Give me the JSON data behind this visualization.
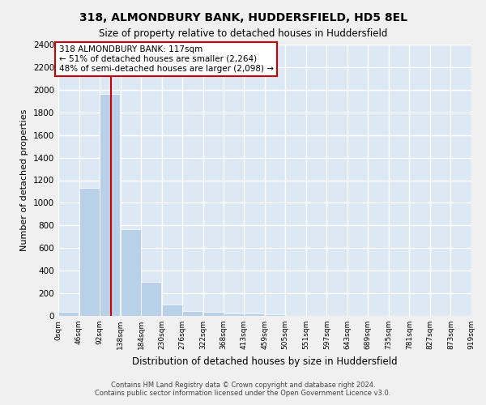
{
  "title": "318, ALMONDBURY BANK, HUDDERSFIELD, HD5 8EL",
  "subtitle": "Size of property relative to detached houses in Huddersfield",
  "xlabel": "Distribution of detached houses by size in Huddersfield",
  "ylabel": "Number of detached properties",
  "bin_edges": [
    0,
    46,
    92,
    138,
    184,
    230,
    276,
    322,
    368,
    413,
    459,
    505,
    551,
    597,
    643,
    689,
    735,
    781,
    827,
    873,
    919
  ],
  "bar_heights": [
    35,
    1135,
    1960,
    770,
    300,
    100,
    45,
    35,
    25,
    20,
    15,
    0,
    0,
    0,
    0,
    0,
    0,
    0,
    0,
    0
  ],
  "bar_color": "#b8d0e8",
  "vline_x": 117,
  "vline_color": "#cc0000",
  "ylim": [
    0,
    2400
  ],
  "yticks": [
    0,
    200,
    400,
    600,
    800,
    1000,
    1200,
    1400,
    1600,
    1800,
    2000,
    2200,
    2400
  ],
  "annotation_text": "318 ALMONDBURY BANK: 117sqm\n← 51% of detached houses are smaller (2,264)\n48% of semi-detached houses are larger (2,098) →",
  "annotation_box_color": "#cc0000",
  "background_color": "#dde8f5",
  "grid_color": "#ffffff",
  "fig_bg_color": "#f0f0f0",
  "footer_line1": "Contains HM Land Registry data © Crown copyright and database right 2024.",
  "footer_line2": "Contains public sector information licensed under the Open Government Licence v3.0."
}
